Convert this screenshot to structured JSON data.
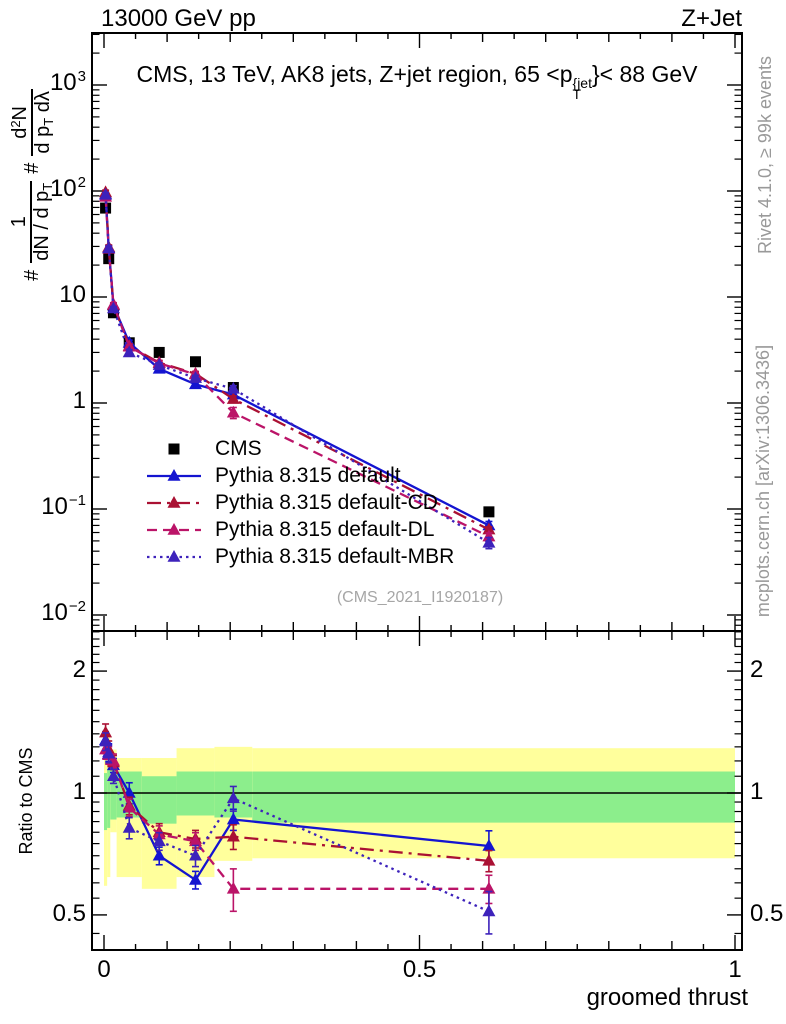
{
  "header": {
    "left": "13000 GeV pp",
    "right": "Z+Jet"
  },
  "title": {
    "prefix": "CMS, 13 TeV, AK8 jets, Z+jet region, 65 <p",
    "sup": "{jet",
    "sub": "T",
    "suffix": "}< 88 GeV"
  },
  "y_title": {
    "hash1": "#",
    "f1_num": "1",
    "f1_den_main": "dN / d p",
    "f1_den_sub": "T",
    "hash2": "#",
    "f2_num_a": "d",
    "f2_num_exp": "2",
    "f2_num_b": "N",
    "f2_den_a": "d p",
    "f2_den_sub": "T",
    "f2_den_b": " dλ"
  },
  "ratio_axis_title": "Ratio to CMS",
  "x_axis_title": "groomed thrust",
  "watermark": "(CMS_2021_I1920187)",
  "side_notes": {
    "top_right": "Rivet 4.1.0, ≥ 99k events",
    "bottom_right": "mcplots.cern.ch [arXiv:1306.3436]"
  },
  "chart_data": {
    "type": "line",
    "title": "CMS, 13 TeV, AK8 jets, Z+jet region, 65 <p_T^{jet}< 88 GeV",
    "xlabel": "groomed thrust",
    "ylabel": "# 1/(dN / d p_T) # d^2N/(d p_T d lambda)",
    "ratio_ylabel": "Ratio to CMS",
    "legend_position": "middle-left",
    "grid": false,
    "x_frame_range": [
      -0.019,
      1.011
    ],
    "main_y_log_range": [
      0.00708,
      3090
    ],
    "ratio_y_log_range": [
      0.41,
      2.52
    ],
    "x_ticks": [
      {
        "label": "0",
        "v": 0
      },
      {
        "label": "0.5",
        "v": 0.5
      },
      {
        "label": "1",
        "v": 1
      }
    ],
    "main_y_ticks": [
      {
        "base": "10",
        "exp": "3",
        "v": 1000
      },
      {
        "base": "10",
        "exp": "2",
        "v": 100
      },
      {
        "base": "10",
        "exp": "",
        "v": 10
      },
      {
        "base": "1",
        "exp": "",
        "v": 1
      },
      {
        "base": "10",
        "exp": "−1",
        "v": 0.1
      },
      {
        "base": "10",
        "exp": "−2",
        "v": 0.01
      }
    ],
    "ratio_y_ticks": [
      {
        "label": "2",
        "v": 2
      },
      {
        "label": "1",
        "v": 1
      },
      {
        "label": "0.5",
        "v": 0.5
      }
    ],
    "x": [
      0.0025,
      0.0075,
      0.015,
      0.04,
      0.0875,
      0.145,
      0.205,
      0.61
    ],
    "series": [
      {
        "name": "CMS",
        "color": "#000000",
        "marker": "square",
        "line": "none",
        "values": [
          69,
          23,
          7.1,
          3.7,
          3.0,
          2.45,
          1.4,
          0.094
        ],
        "err_frac": [
          0.04,
          0.04,
          0.04,
          0.04,
          0.04,
          0.04,
          0.05,
          0.06
        ]
      },
      {
        "name": "Pythia 8.315 default",
        "color": "#1414d0",
        "marker": "triangle",
        "line": "solid",
        "values": [
          93,
          29,
          8.3,
          3.7,
          2.1,
          1.5,
          1.2,
          0.07
        ],
        "ratio": [
          1.35,
          1.26,
          1.17,
          1.0,
          0.7,
          0.61,
          0.86,
          0.74
        ],
        "err_frac": [
          0.05,
          0.05,
          0.04,
          0.06,
          0.05,
          0.05,
          0.06,
          0.09
        ]
      },
      {
        "name": "Pythia 8.315 default-CD",
        "color": "#aa1133",
        "marker": "triangle",
        "line": "dashdot",
        "values": [
          97,
          29.5,
          8.4,
          3.45,
          2.4,
          1.89,
          1.09,
          0.064
        ],
        "ratio": [
          1.41,
          1.28,
          1.19,
          0.93,
          0.8,
          0.77,
          0.78,
          0.68
        ],
        "err_frac": [
          0.05,
          0.05,
          0.04,
          0.05,
          0.05,
          0.05,
          0.07,
          0.06
        ]
      },
      {
        "name": "Pythia 8.315 default-DL",
        "color": "#bb1468",
        "marker": "triangle",
        "line": "dashed",
        "values": [
          88,
          28.5,
          8.5,
          3.4,
          2.37,
          1.86,
          0.81,
          0.055
        ],
        "ratio": [
          1.28,
          1.24,
          1.2,
          0.92,
          0.79,
          0.76,
          0.58,
          0.58
        ],
        "err_frac": [
          0.05,
          0.05,
          0.04,
          0.05,
          0.05,
          0.05,
          0.12,
          0.08
        ]
      },
      {
        "name": "Pythia 8.315 default-MBR",
        "color": "#3d22bb",
        "marker": "triangle",
        "line": "dotted",
        "values": [
          92,
          28.8,
          7.8,
          3.0,
          2.28,
          1.72,
          1.36,
          0.048
        ],
        "ratio": [
          1.34,
          1.25,
          1.1,
          0.82,
          0.76,
          0.7,
          0.97,
          0.51
        ],
        "err_frac": [
          0.05,
          0.05,
          0.04,
          0.06,
          0.05,
          0.06,
          0.07,
          0.12
        ]
      }
    ],
    "uncertainty_bands": {
      "yellow_color": "#ffff9c",
      "green_color": "#8cee8c",
      "bins": [
        {
          "x0": 0.0,
          "x1": 0.005,
          "yellow": [
            0.59,
            1.45
          ],
          "green": [
            0.81,
            1.12
          ]
        },
        {
          "x0": 0.005,
          "x1": 0.01,
          "yellow": [
            0.62,
            1.38
          ],
          "green": [
            0.82,
            1.15
          ]
        },
        {
          "x0": 0.01,
          "x1": 0.02,
          "yellow": [
            0.8,
            1.28
          ],
          "green": [
            0.86,
            1.15
          ]
        },
        {
          "x0": 0.02,
          "x1": 0.06,
          "yellow": [
            0.62,
            1.22
          ],
          "green": [
            0.87,
            1.13
          ]
        },
        {
          "x0": 0.06,
          "x1": 0.115,
          "yellow": [
            0.58,
            1.22
          ],
          "green": [
            0.84,
            1.1
          ]
        },
        {
          "x0": 0.115,
          "x1": 0.175,
          "yellow": [
            0.62,
            1.29
          ],
          "green": [
            0.88,
            1.13
          ]
        },
        {
          "x0": 0.175,
          "x1": 0.235,
          "yellow": [
            0.68,
            1.3
          ],
          "green": [
            0.87,
            1.13
          ]
        },
        {
          "x0": 0.235,
          "x1": 1.0,
          "yellow": [
            0.69,
            1.29
          ],
          "green": [
            0.845,
            1.13
          ]
        }
      ]
    }
  }
}
